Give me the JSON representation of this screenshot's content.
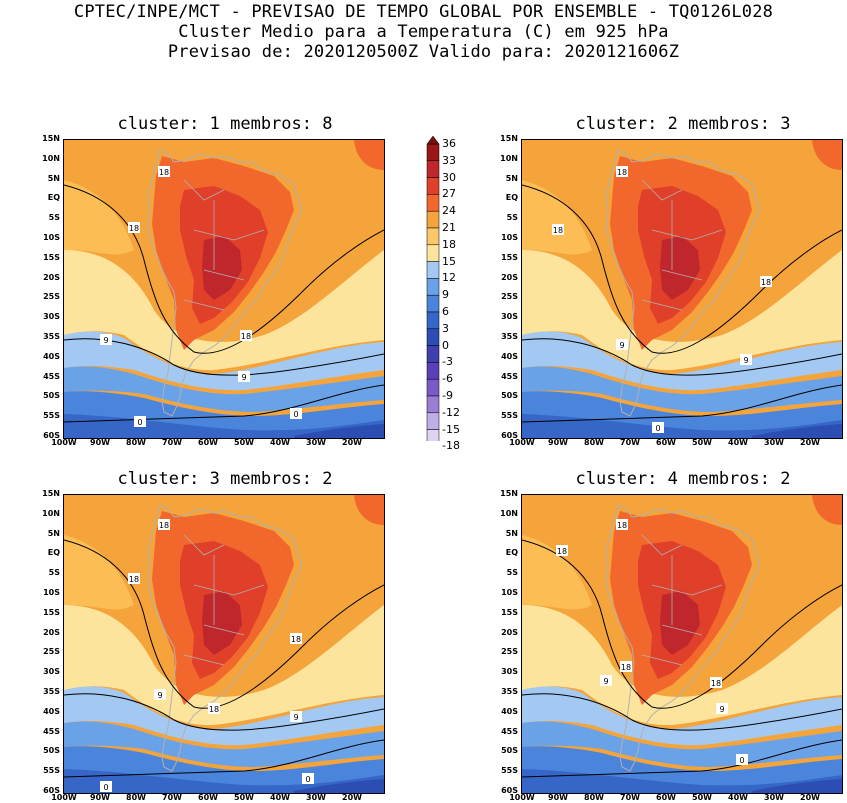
{
  "header": {
    "line1": "CPTEC/INPE/MCT - PREVISAO DE TEMPO GLOBAL POR ENSEMBLE - TQ0126L028",
    "line2": "Cluster Medio para a Temperatura (C) em 925 hPa",
    "line3": "Previsao de: 2020120500Z   Valido para: 2020121606Z"
  },
  "panels": [
    {
      "title": "cluster: 1  membros: 8"
    },
    {
      "title": "cluster: 2  membros: 3"
    },
    {
      "title": "cluster: 3  membros: 2"
    },
    {
      "title": "cluster: 4  membros: 2"
    }
  ],
  "lat_labels": [
    "15N",
    "10N",
    "5N",
    "EQ",
    "5S",
    "10S",
    "15S",
    "20S",
    "25S",
    "30S",
    "35S",
    "40S",
    "45S",
    "50S",
    "55S",
    "60S"
  ],
  "lon_labels": [
    "100W",
    "90W",
    "80W",
    "70W",
    "60W",
    "50W",
    "40W",
    "30W",
    "20W"
  ],
  "contour_labels": {
    "c18": "18",
    "c9": "9",
    "c0": "0"
  },
  "colorbar": {
    "labels": [
      "36",
      "33",
      "30",
      "27",
      "24",
      "21",
      "18",
      "15",
      "12",
      "9",
      "6",
      "3",
      "0",
      "-3",
      "-6",
      "-9",
      "-12",
      "-15",
      "-18"
    ],
    "colors": [
      "#9b1717",
      "#c0272d",
      "#e0402a",
      "#f2682c",
      "#f4a43a",
      "#fcc867",
      "#fde49c",
      "#a3c9f2",
      "#6aa2e8",
      "#4a84db",
      "#3566c8",
      "#2b4db4",
      "#3f3fb0",
      "#5a3fb8",
      "#7a5ac8",
      "#9a7ed6",
      "#bfaee6",
      "#ddd4f2"
    ]
  },
  "colors": {
    "c24_27": "#f2682c",
    "c27_30": "#e0402a",
    "c30_33": "#c0272d",
    "c21_24": "#f4a43a",
    "c18_21": "#fbbd54",
    "c15_18": "#fde49c",
    "c12_15": "#a3c9f2",
    "c9_12": "#6aa2e8",
    "c6_9": "#4a84db",
    "c3_6": "#3566c8",
    "c0_3": "#2b4db4",
    "cm3_0": "#4f46c0"
  }
}
